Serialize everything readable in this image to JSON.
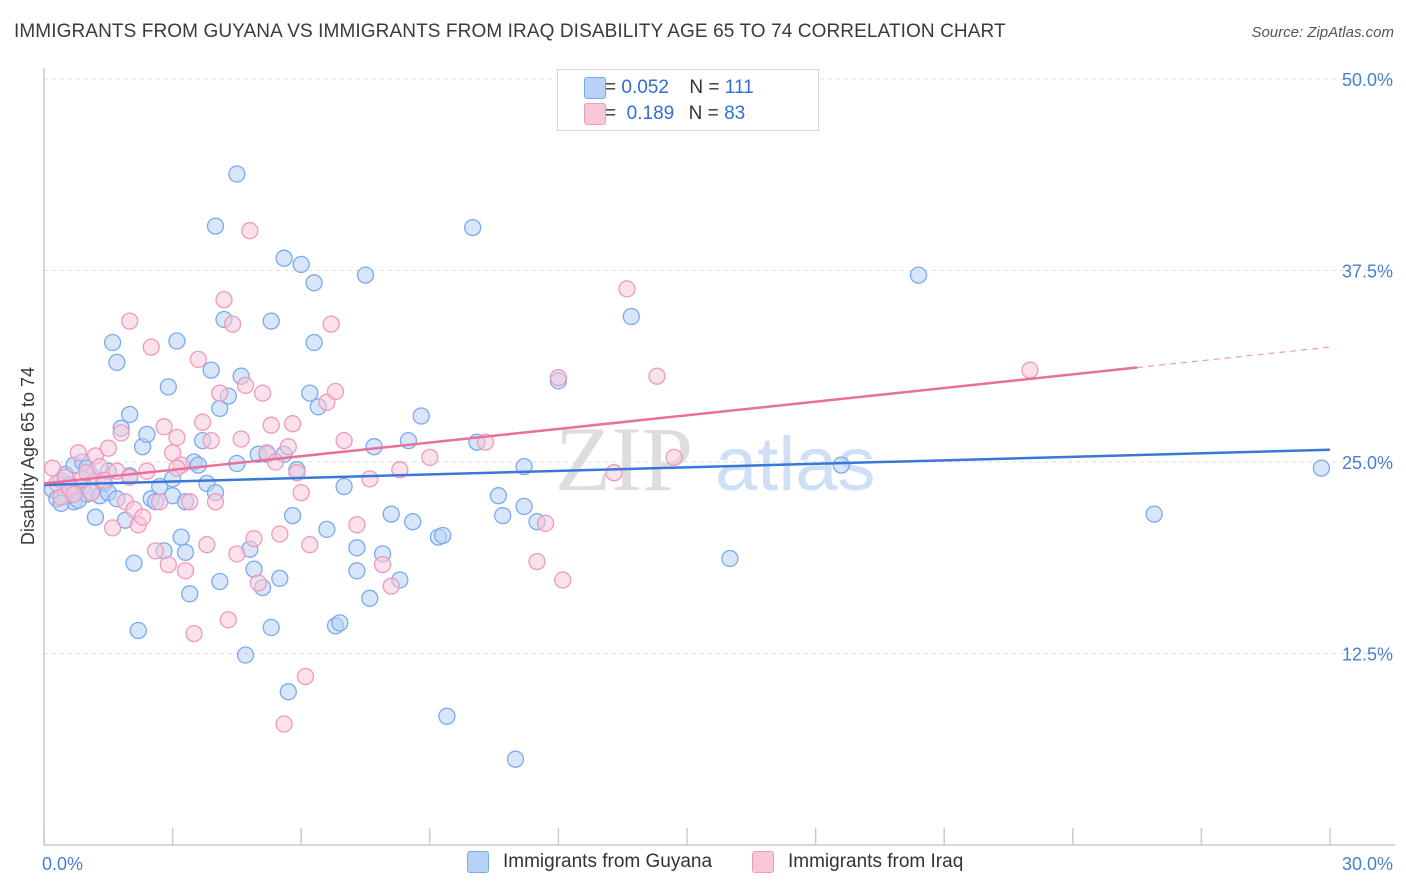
{
  "header": {
    "title": "IMMIGRANTS FROM GUYANA VS IMMIGRANTS FROM IRAQ DISABILITY AGE 65 TO 74 CORRELATION CHART",
    "source": "Source: ZipAtlas.com"
  },
  "watermark": {
    "zip": "ZIP",
    "atlas": "atlas"
  },
  "legend": {
    "rows": [
      {
        "r_label": "R =",
        "r_value": "0.052",
        "n_label": "N =",
        "n_value": "111",
        "color": "#7aaaf0",
        "fill": "#b8d2f6"
      },
      {
        "r_label": "R =",
        "r_value": "0.189",
        "n_label": "N =",
        "n_value": "83",
        "color": "#f09ab8",
        "fill": "#f8c8da"
      }
    ]
  },
  "bottom_legend": [
    {
      "label": "Immigrants from Guyana",
      "color": "#7aaaf0",
      "fill": "#b8d2f6"
    },
    {
      "label": "Immigrants from Iraq",
      "color": "#f09ab8",
      "fill": "#f8c8da"
    }
  ],
  "chart_data": {
    "type": "scatter",
    "title": "IMMIGRANTS FROM GUYANA VS IMMIGRANTS FROM IRAQ DISABILITY AGE 65 TO 74 CORRELATION CHART",
    "xlabel": "",
    "ylabel": "Disability Age 65 to 74",
    "xlim": [
      0,
      30
    ],
    "ylim": [
      0,
      50
    ],
    "x_tick_labels": [
      "0.0%",
      "30.0%"
    ],
    "y_ticks": [
      12.5,
      25.0,
      37.5,
      50.0
    ],
    "y_tick_labels": [
      "12.5%",
      "25.0%",
      "37.5%",
      "50.0%"
    ],
    "grid": true,
    "legend_position": "top-center",
    "series": [
      {
        "name": "Immigrants from Guyana",
        "color": "#3a78d8",
        "marker_fill": "#b8d2f6",
        "marker_stroke": "#7aaaf0",
        "trend": {
          "x": [
            0,
            30
          ],
          "y": [
            23.5,
            25.8
          ],
          "dashed_from": null
        },
        "points": [
          [
            0.2,
            23.2
          ],
          [
            0.3,
            22.6
          ],
          [
            0.4,
            23.8
          ],
          [
            0.5,
            24.2
          ],
          [
            0.5,
            22.8
          ],
          [
            0.6,
            23.5
          ],
          [
            0.7,
            24.8
          ],
          [
            0.7,
            22.4
          ],
          [
            0.8,
            23.1
          ],
          [
            0.9,
            25.0
          ],
          [
            0.9,
            23.4
          ],
          [
            1.0,
            22.9
          ],
          [
            1.1,
            24.1
          ],
          [
            1.1,
            23.0
          ],
          [
            1.2,
            21.4
          ],
          [
            1.3,
            22.8
          ],
          [
            1.4,
            23.6
          ],
          [
            1.5,
            23.0
          ],
          [
            1.5,
            24.4
          ],
          [
            1.6,
            32.8
          ],
          [
            1.7,
            31.5
          ],
          [
            1.8,
            27.2
          ],
          [
            1.9,
            21.2
          ],
          [
            2.0,
            28.1
          ],
          [
            2.1,
            18.4
          ],
          [
            2.2,
            14.0
          ],
          [
            2.3,
            26.0
          ],
          [
            2.4,
            26.8
          ],
          [
            2.5,
            22.6
          ],
          [
            2.6,
            22.4
          ],
          [
            2.7,
            23.4
          ],
          [
            2.8,
            19.2
          ],
          [
            2.9,
            29.9
          ],
          [
            3.0,
            22.8
          ],
          [
            3.1,
            32.9
          ],
          [
            3.2,
            20.1
          ],
          [
            3.3,
            19.1
          ],
          [
            3.3,
            22.4
          ],
          [
            3.4,
            16.4
          ],
          [
            3.5,
            25.0
          ],
          [
            3.6,
            24.8
          ],
          [
            3.7,
            26.4
          ],
          [
            3.8,
            23.6
          ],
          [
            4.0,
            40.4
          ],
          [
            4.1,
            17.2
          ],
          [
            4.1,
            28.5
          ],
          [
            4.2,
            34.3
          ],
          [
            4.3,
            29.3
          ],
          [
            4.5,
            24.9
          ],
          [
            4.6,
            30.6
          ],
          [
            4.7,
            12.4
          ],
          [
            4.8,
            19.3
          ],
          [
            4.9,
            18.0
          ],
          [
            5.0,
            25.5
          ],
          [
            5.1,
            16.8
          ],
          [
            5.2,
            25.5
          ],
          [
            5.3,
            34.2
          ],
          [
            5.3,
            14.2
          ],
          [
            5.5,
            17.4
          ],
          [
            5.6,
            25.5
          ],
          [
            5.6,
            38.3
          ],
          [
            5.7,
            10.0
          ],
          [
            5.8,
            21.5
          ],
          [
            5.9,
            24.5
          ],
          [
            6.0,
            37.9
          ],
          [
            6.2,
            29.5
          ],
          [
            6.3,
            32.8
          ],
          [
            6.4,
            28.6
          ],
          [
            6.6,
            20.6
          ],
          [
            6.8,
            14.3
          ],
          [
            6.9,
            14.5
          ],
          [
            7.0,
            23.4
          ],
          [
            7.3,
            19.4
          ],
          [
            7.3,
            17.9
          ],
          [
            7.5,
            37.2
          ],
          [
            7.6,
            16.1
          ],
          [
            7.7,
            26.0
          ],
          [
            7.9,
            19.0
          ],
          [
            8.1,
            21.6
          ],
          [
            8.3,
            17.3
          ],
          [
            8.5,
            26.4
          ],
          [
            8.6,
            21.1
          ],
          [
            8.8,
            28.0
          ],
          [
            9.2,
            20.1
          ],
          [
            9.3,
            20.2
          ],
          [
            9.4,
            8.4
          ],
          [
            10.0,
            40.3
          ],
          [
            10.1,
            26.3
          ],
          [
            10.6,
            22.8
          ],
          [
            10.7,
            21.5
          ],
          [
            11.0,
            5.6
          ],
          [
            11.2,
            24.7
          ],
          [
            11.2,
            22.1
          ],
          [
            11.5,
            21.1
          ],
          [
            12.0,
            30.3
          ],
          [
            2.0,
            24.1
          ],
          [
            3.0,
            23.9
          ],
          [
            4.0,
            23.0
          ],
          [
            1.0,
            24.6
          ],
          [
            3.9,
            31.0
          ],
          [
            13.7,
            34.5
          ],
          [
            16.0,
            18.7
          ],
          [
            18.6,
            24.8
          ],
          [
            20.4,
            37.2
          ],
          [
            25.9,
            21.6
          ],
          [
            29.8,
            24.6
          ],
          [
            6.3,
            36.7
          ],
          [
            4.5,
            43.8
          ],
          [
            0.4,
            22.3
          ],
          [
            0.8,
            22.5
          ],
          [
            1.7,
            22.6
          ]
        ]
      },
      {
        "name": "Immigrants from Iraq",
        "color": "#e8709a",
        "marker_fill": "#f8c8da",
        "marker_stroke": "#f09ab8",
        "trend": {
          "x": [
            0,
            30
          ],
          "y": [
            23.6,
            32.5
          ],
          "dashed_from": 25.5
        },
        "points": [
          [
            0.2,
            24.6
          ],
          [
            0.3,
            23.6
          ],
          [
            0.4,
            22.7
          ],
          [
            0.5,
            24.0
          ],
          [
            0.6,
            23.3
          ],
          [
            0.7,
            22.9
          ],
          [
            0.8,
            25.6
          ],
          [
            0.9,
            23.9
          ],
          [
            1.0,
            24.3
          ],
          [
            1.1,
            23.0
          ],
          [
            1.2,
            25.4
          ],
          [
            1.3,
            24.7
          ],
          [
            1.4,
            23.8
          ],
          [
            1.5,
            25.9
          ],
          [
            1.6,
            20.7
          ],
          [
            1.7,
            24.4
          ],
          [
            1.8,
            26.9
          ],
          [
            1.9,
            22.4
          ],
          [
            2.0,
            24.0
          ],
          [
            2.1,
            21.9
          ],
          [
            2.2,
            20.9
          ],
          [
            2.3,
            21.4
          ],
          [
            2.4,
            24.4
          ],
          [
            2.5,
            32.5
          ],
          [
            2.6,
            19.2
          ],
          [
            2.7,
            22.4
          ],
          [
            2.8,
            27.3
          ],
          [
            2.9,
            18.3
          ],
          [
            3.0,
            25.6
          ],
          [
            3.1,
            26.6
          ],
          [
            3.2,
            24.8
          ],
          [
            3.3,
            17.9
          ],
          [
            3.4,
            22.4
          ],
          [
            3.5,
            13.8
          ],
          [
            3.6,
            31.7
          ],
          [
            3.7,
            27.6
          ],
          [
            3.8,
            19.6
          ],
          [
            3.9,
            26.4
          ],
          [
            4.0,
            22.4
          ],
          [
            4.1,
            29.5
          ],
          [
            4.2,
            35.6
          ],
          [
            4.3,
            14.7
          ],
          [
            4.4,
            34.0
          ],
          [
            4.5,
            19.0
          ],
          [
            4.6,
            26.5
          ],
          [
            4.7,
            30.0
          ],
          [
            4.8,
            40.1
          ],
          [
            4.9,
            20.0
          ],
          [
            5.0,
            17.1
          ],
          [
            5.1,
            29.5
          ],
          [
            5.2,
            25.6
          ],
          [
            5.3,
            27.4
          ],
          [
            5.4,
            25.0
          ],
          [
            5.5,
            20.3
          ],
          [
            5.6,
            7.9
          ],
          [
            5.7,
            26.0
          ],
          [
            5.8,
            27.5
          ],
          [
            5.9,
            24.3
          ],
          [
            6.0,
            23.0
          ],
          [
            6.1,
            11.0
          ],
          [
            6.2,
            19.6
          ],
          [
            6.6,
            28.9
          ],
          [
            6.7,
            34.0
          ],
          [
            6.8,
            29.6
          ],
          [
            7.0,
            26.4
          ],
          [
            7.3,
            20.9
          ],
          [
            7.6,
            23.9
          ],
          [
            7.9,
            18.3
          ],
          [
            8.1,
            16.9
          ],
          [
            8.3,
            24.5
          ],
          [
            9.0,
            25.3
          ],
          [
            10.3,
            26.3
          ],
          [
            11.7,
            21.0
          ],
          [
            12.0,
            30.5
          ],
          [
            13.6,
            36.3
          ],
          [
            14.3,
            30.6
          ],
          [
            14.7,
            25.3
          ],
          [
            11.5,
            18.5
          ],
          [
            13.3,
            24.3
          ],
          [
            12.1,
            17.3
          ],
          [
            2.0,
            34.2
          ],
          [
            3.1,
            24.6
          ],
          [
            23.0,
            31.0
          ]
        ]
      }
    ]
  }
}
